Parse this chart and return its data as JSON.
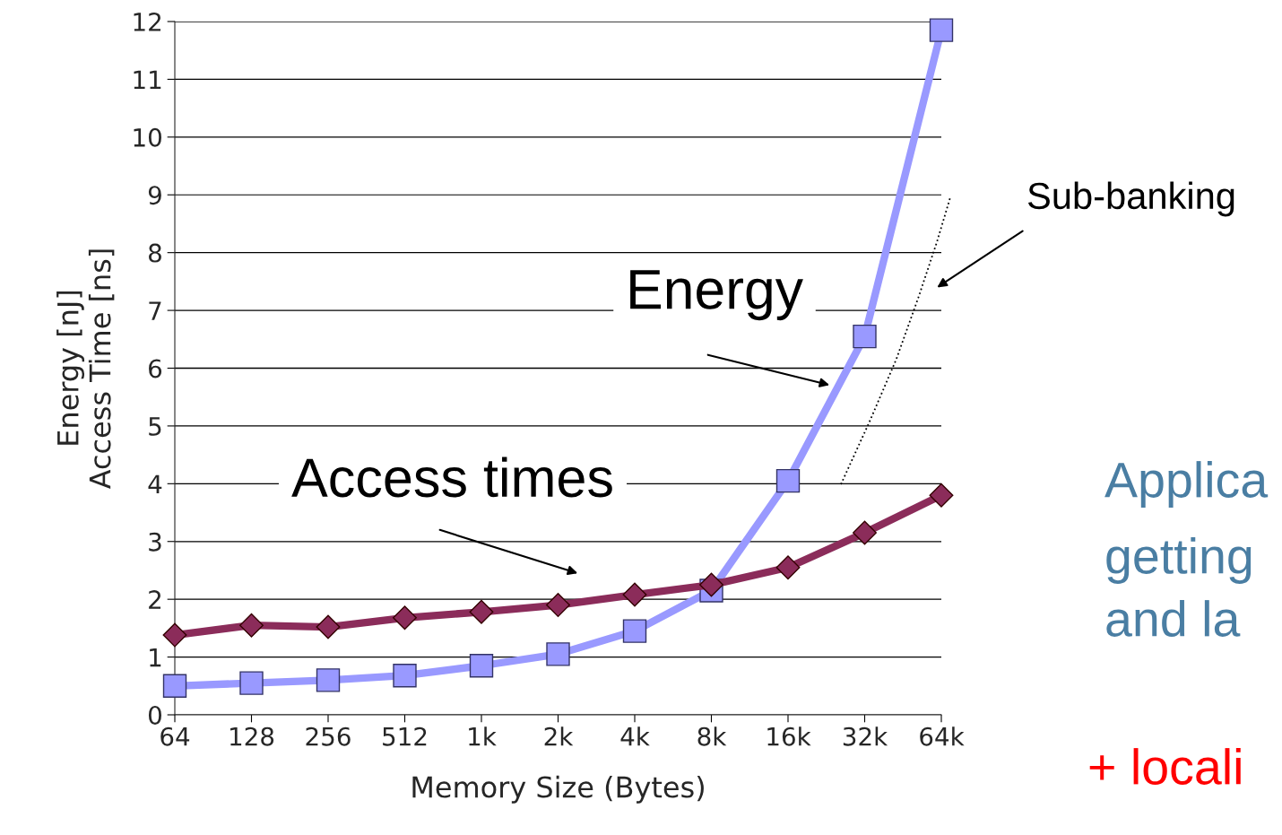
{
  "chart_data": {
    "type": "line",
    "ylabel": "Energy [nJ]\nAccess Time [ns]",
    "xlabel": "Memory Size (Bytes)",
    "categories": [
      "64",
      "128",
      "256",
      "512",
      "1k",
      "2k",
      "4k",
      "8k",
      "16k",
      "32k",
      "64k"
    ],
    "series": [
      {
        "color": "#9999ff",
        "marker": "square",
        "values": [
          0.5,
          0.55,
          0.6,
          0.68,
          0.85,
          1.05,
          1.45,
          2.15,
          4.05,
          6.55,
          11.85
        ]
      },
      {
        "color": "#8b2c5a",
        "marker": "diamond",
        "values": [
          1.38,
          1.55,
          1.52,
          1.68,
          1.78,
          1.9,
          2.08,
          2.25,
          2.55,
          3.15,
          3.8
        ]
      }
    ],
    "ylim": [
      0,
      12
    ],
    "yticks": [
      0,
      1,
      2,
      3,
      4,
      5,
      6,
      7,
      8,
      9,
      10,
      11,
      12
    ],
    "grid": "y",
    "annotations": [
      "Energy",
      "Access times",
      "Sub-banking",
      "Applica",
      "getting",
      "and la",
      "+ locali"
    ]
  }
}
